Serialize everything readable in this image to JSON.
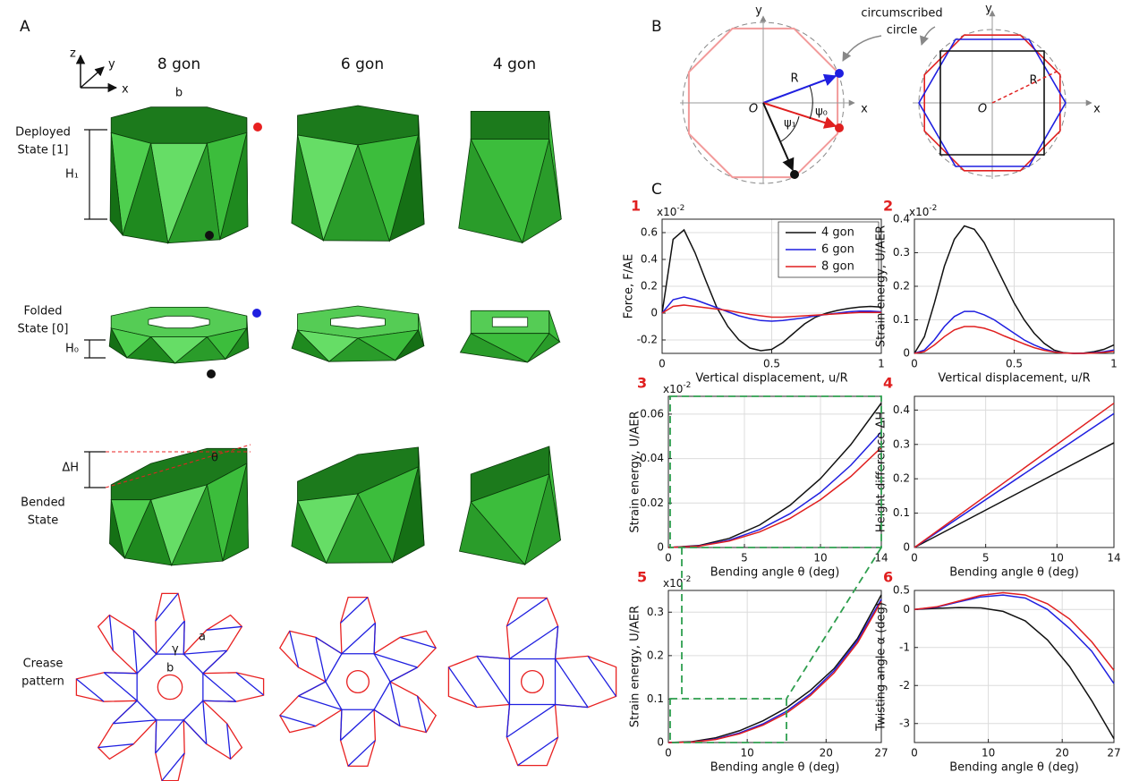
{
  "panel_a": {
    "label": "A",
    "axes": {
      "x": "x",
      "y": "y",
      "z": "z"
    },
    "columns": [
      "8 gon",
      "6 gon",
      "4 gon"
    ],
    "rows": [
      [
        "Deployed",
        "State [1]"
      ],
      [
        "Folded",
        "State [0]"
      ],
      [
        "Bended",
        "State"
      ],
      [
        "Crease",
        "pattern"
      ]
    ],
    "annotations": {
      "b_top": "b",
      "h1": "H₁",
      "h0": "H₀",
      "dh": "ΔH",
      "theta": "θ",
      "a": "a",
      "gamma": "γ",
      "b_crease": "b"
    }
  },
  "panel_b": {
    "label": "B",
    "left": {
      "x": "x",
      "y": "y",
      "origin": "O",
      "r": "R",
      "psi0": "ψ₀",
      "psi1": "ψ₁"
    },
    "callout": [
      "circumscribed",
      "circle"
    ],
    "right": {
      "x": "x",
      "y": "y",
      "origin": "O",
      "r": "R"
    }
  },
  "panel_c": {
    "label": "C"
  },
  "chart_data": [
    {
      "type": "line",
      "panel_number": "1",
      "y_multiplier": "x10",
      "y_multiplier_exponent": "-2",
      "x_label": "Vertical displacement, u/R",
      "y_label": "Force, F/AE",
      "legend": true,
      "grid": true,
      "x": [
        0,
        0.05,
        0.1,
        0.15,
        0.2,
        0.25,
        0.3,
        0.35,
        0.4,
        0.45,
        0.5,
        0.55,
        0.6,
        0.65,
        0.7,
        0.75,
        0.8,
        0.85,
        0.9,
        0.95,
        1
      ],
      "xlim": [
        0,
        1
      ],
      "xticks": [
        0,
        0.5,
        1
      ],
      "ylim": [
        -0.3,
        0.7
      ],
      "yticks": [
        -0.2,
        0,
        0.2,
        0.4,
        0.6
      ],
      "series": [
        {
          "name": "4 gon",
          "color": "#111111",
          "values": [
            0,
            0.55,
            0.62,
            0.45,
            0.24,
            0.04,
            -0.1,
            -0.2,
            -0.26,
            -0.28,
            -0.27,
            -0.22,
            -0.15,
            -0.08,
            -0.03,
            0,
            0.02,
            0.035,
            0.045,
            0.05,
            0.045
          ]
        },
        {
          "name": "6 gon",
          "color": "#1f1fe0",
          "values": [
            0,
            0.1,
            0.12,
            0.1,
            0.07,
            0.04,
            0.01,
            -0.02,
            -0.04,
            -0.055,
            -0.06,
            -0.055,
            -0.045,
            -0.035,
            -0.02,
            -0.01,
            0,
            0.01,
            0.015,
            0.015,
            0.01
          ]
        },
        {
          "name": "8 gon",
          "color": "#e01f1f",
          "values": [
            0,
            0.05,
            0.06,
            0.05,
            0.04,
            0.03,
            0.02,
            0.005,
            -0.01,
            -0.02,
            -0.03,
            -0.03,
            -0.025,
            -0.02,
            -0.015,
            -0.01,
            -0.005,
            0,
            0.005,
            0.005,
            0.005
          ]
        }
      ]
    },
    {
      "type": "line",
      "panel_number": "2",
      "y_multiplier": "x10",
      "y_multiplier_exponent": "-2",
      "x_label": "Vertical displacement, u/R",
      "y_label": "Strain energy, U/AER",
      "legend": false,
      "grid": true,
      "x": [
        0,
        0.05,
        0.1,
        0.15,
        0.2,
        0.25,
        0.3,
        0.35,
        0.4,
        0.45,
        0.5,
        0.55,
        0.6,
        0.65,
        0.7,
        0.75,
        0.8,
        0.85,
        0.9,
        0.95,
        1
      ],
      "xlim": [
        0,
        1
      ],
      "xticks": [
        0,
        0.5,
        1
      ],
      "ylim": [
        0,
        0.4
      ],
      "yticks": [
        0,
        0.1,
        0.2,
        0.3,
        0.4
      ],
      "series": [
        {
          "name": "4 gon",
          "color": "#111111",
          "values": [
            0,
            0.05,
            0.15,
            0.26,
            0.34,
            0.38,
            0.37,
            0.33,
            0.27,
            0.21,
            0.15,
            0.1,
            0.06,
            0.03,
            0.01,
            0.002,
            0,
            0.001,
            0.005,
            0.012,
            0.025
          ]
        },
        {
          "name": "6 gon",
          "color": "#1f1fe0",
          "values": [
            0,
            0.01,
            0.04,
            0.08,
            0.11,
            0.125,
            0.125,
            0.115,
            0.1,
            0.08,
            0.06,
            0.04,
            0.025,
            0.013,
            0.005,
            0.001,
            0,
            0,
            0.002,
            0.005,
            0.01
          ]
        },
        {
          "name": "8 gon",
          "color": "#e01f1f",
          "values": [
            0,
            0.005,
            0.025,
            0.05,
            0.07,
            0.08,
            0.08,
            0.075,
            0.065,
            0.052,
            0.04,
            0.028,
            0.017,
            0.009,
            0.004,
            0.001,
            0,
            0,
            0.001,
            0.003,
            0.006
          ]
        }
      ]
    },
    {
      "type": "line",
      "panel_number": "3",
      "y_multiplier": "x10",
      "y_multiplier_exponent": "-2",
      "x_label": "Bending angle θ (deg)",
      "y_label": "Strain energy, U/AER",
      "legend": false,
      "grid": true,
      "x": [
        0,
        2,
        4,
        6,
        8,
        10,
        12,
        14
      ],
      "xlim": [
        0,
        14
      ],
      "xticks": [
        0,
        5,
        10,
        14
      ],
      "ylim": [
        0,
        0.068
      ],
      "yticks": [
        0,
        0.02,
        0.04,
        0.06
      ],
      "series": [
        {
          "name": "4 gon",
          "color": "#111111",
          "values": [
            0,
            0.0009,
            0.0041,
            0.0101,
            0.019,
            0.031,
            0.0463,
            0.065
          ]
        },
        {
          "name": "6 gon",
          "color": "#1f1fe0",
          "values": [
            0,
            0.0007,
            0.0033,
            0.0081,
            0.0152,
            0.0248,
            0.037,
            0.052
          ]
        },
        {
          "name": "8 gon",
          "color": "#e01f1f",
          "values": [
            0,
            0.0006,
            0.0029,
            0.007,
            0.0131,
            0.0215,
            0.032,
            0.045
          ]
        }
      ]
    },
    {
      "type": "line",
      "panel_number": "4",
      "x_label": "Bending angle θ (deg)",
      "y_label": "Height difference ΔH",
      "legend": false,
      "grid": true,
      "x": [
        0,
        14
      ],
      "xlim": [
        0,
        14
      ],
      "xticks": [
        0,
        5,
        10,
        14
      ],
      "ylim": [
        0,
        0.44
      ],
      "yticks": [
        0,
        0.1,
        0.2,
        0.3,
        0.4
      ],
      "series": [
        {
          "name": "4 gon",
          "color": "#111111",
          "values": [
            0,
            0.305
          ]
        },
        {
          "name": "6 gon",
          "color": "#1f1fe0",
          "values": [
            0,
            0.39
          ]
        },
        {
          "name": "8 gon",
          "color": "#e01f1f",
          "values": [
            0,
            0.42
          ]
        }
      ]
    },
    {
      "type": "line",
      "panel_number": "5",
      "y_multiplier": "x10",
      "y_multiplier_exponent": "-2",
      "x_label": "Bending angle θ (deg)",
      "y_label": "Strain energy, U/AER",
      "legend": false,
      "grid": true,
      "x": [
        0,
        3,
        6,
        9,
        12,
        15,
        18,
        21,
        24,
        27
      ],
      "xlim": [
        0,
        27
      ],
      "xticks": [
        0,
        10,
        20,
        27
      ],
      "ylim": [
        0,
        0.35
      ],
      "yticks": [
        0,
        0.1,
        0.2,
        0.3
      ],
      "series": [
        {
          "name": "4 gon",
          "color": "#111111",
          "values": [
            0,
            0.002,
            0.011,
            0.027,
            0.05,
            0.08,
            0.12,
            0.17,
            0.24,
            0.34
          ]
        },
        {
          "name": "6 gon",
          "color": "#1f1fe0",
          "values": [
            0,
            0.001,
            0.008,
            0.022,
            0.043,
            0.072,
            0.112,
            0.165,
            0.235,
            0.33
          ]
        },
        {
          "name": "8 gon",
          "color": "#e01f1f",
          "values": [
            0,
            0.001,
            0.007,
            0.02,
            0.04,
            0.068,
            0.108,
            0.16,
            0.23,
            0.325
          ]
        }
      ]
    },
    {
      "type": "line",
      "panel_number": "6",
      "x_label": "Bending angle θ (deg)",
      "y_label": "Twisting angle α (deg)",
      "legend": false,
      "grid": true,
      "x": [
        0,
        3,
        6,
        9,
        12,
        15,
        18,
        21,
        24,
        27
      ],
      "xlim": [
        0,
        27
      ],
      "xticks": [
        0,
        10,
        20,
        27
      ],
      "ylim": [
        -3.5,
        0.5
      ],
      "yticks": [
        -3,
        -2,
        -1,
        0,
        0.5
      ],
      "series": [
        {
          "name": "4 gon",
          "color": "#111111",
          "values": [
            0,
            0.03,
            0.05,
            0.04,
            -0.05,
            -0.3,
            -0.8,
            -1.5,
            -2.4,
            -3.4
          ]
        },
        {
          "name": "6 gon",
          "color": "#1f1fe0",
          "values": [
            0,
            0.06,
            0.2,
            0.33,
            0.38,
            0.3,
            0,
            -0.5,
            -1.1,
            -1.95
          ]
        },
        {
          "name": "8 gon",
          "color": "#e01f1f",
          "values": [
            0,
            0.07,
            0.22,
            0.37,
            0.44,
            0.38,
            0.15,
            -0.25,
            -0.85,
            -1.6
          ]
        }
      ]
    }
  ]
}
